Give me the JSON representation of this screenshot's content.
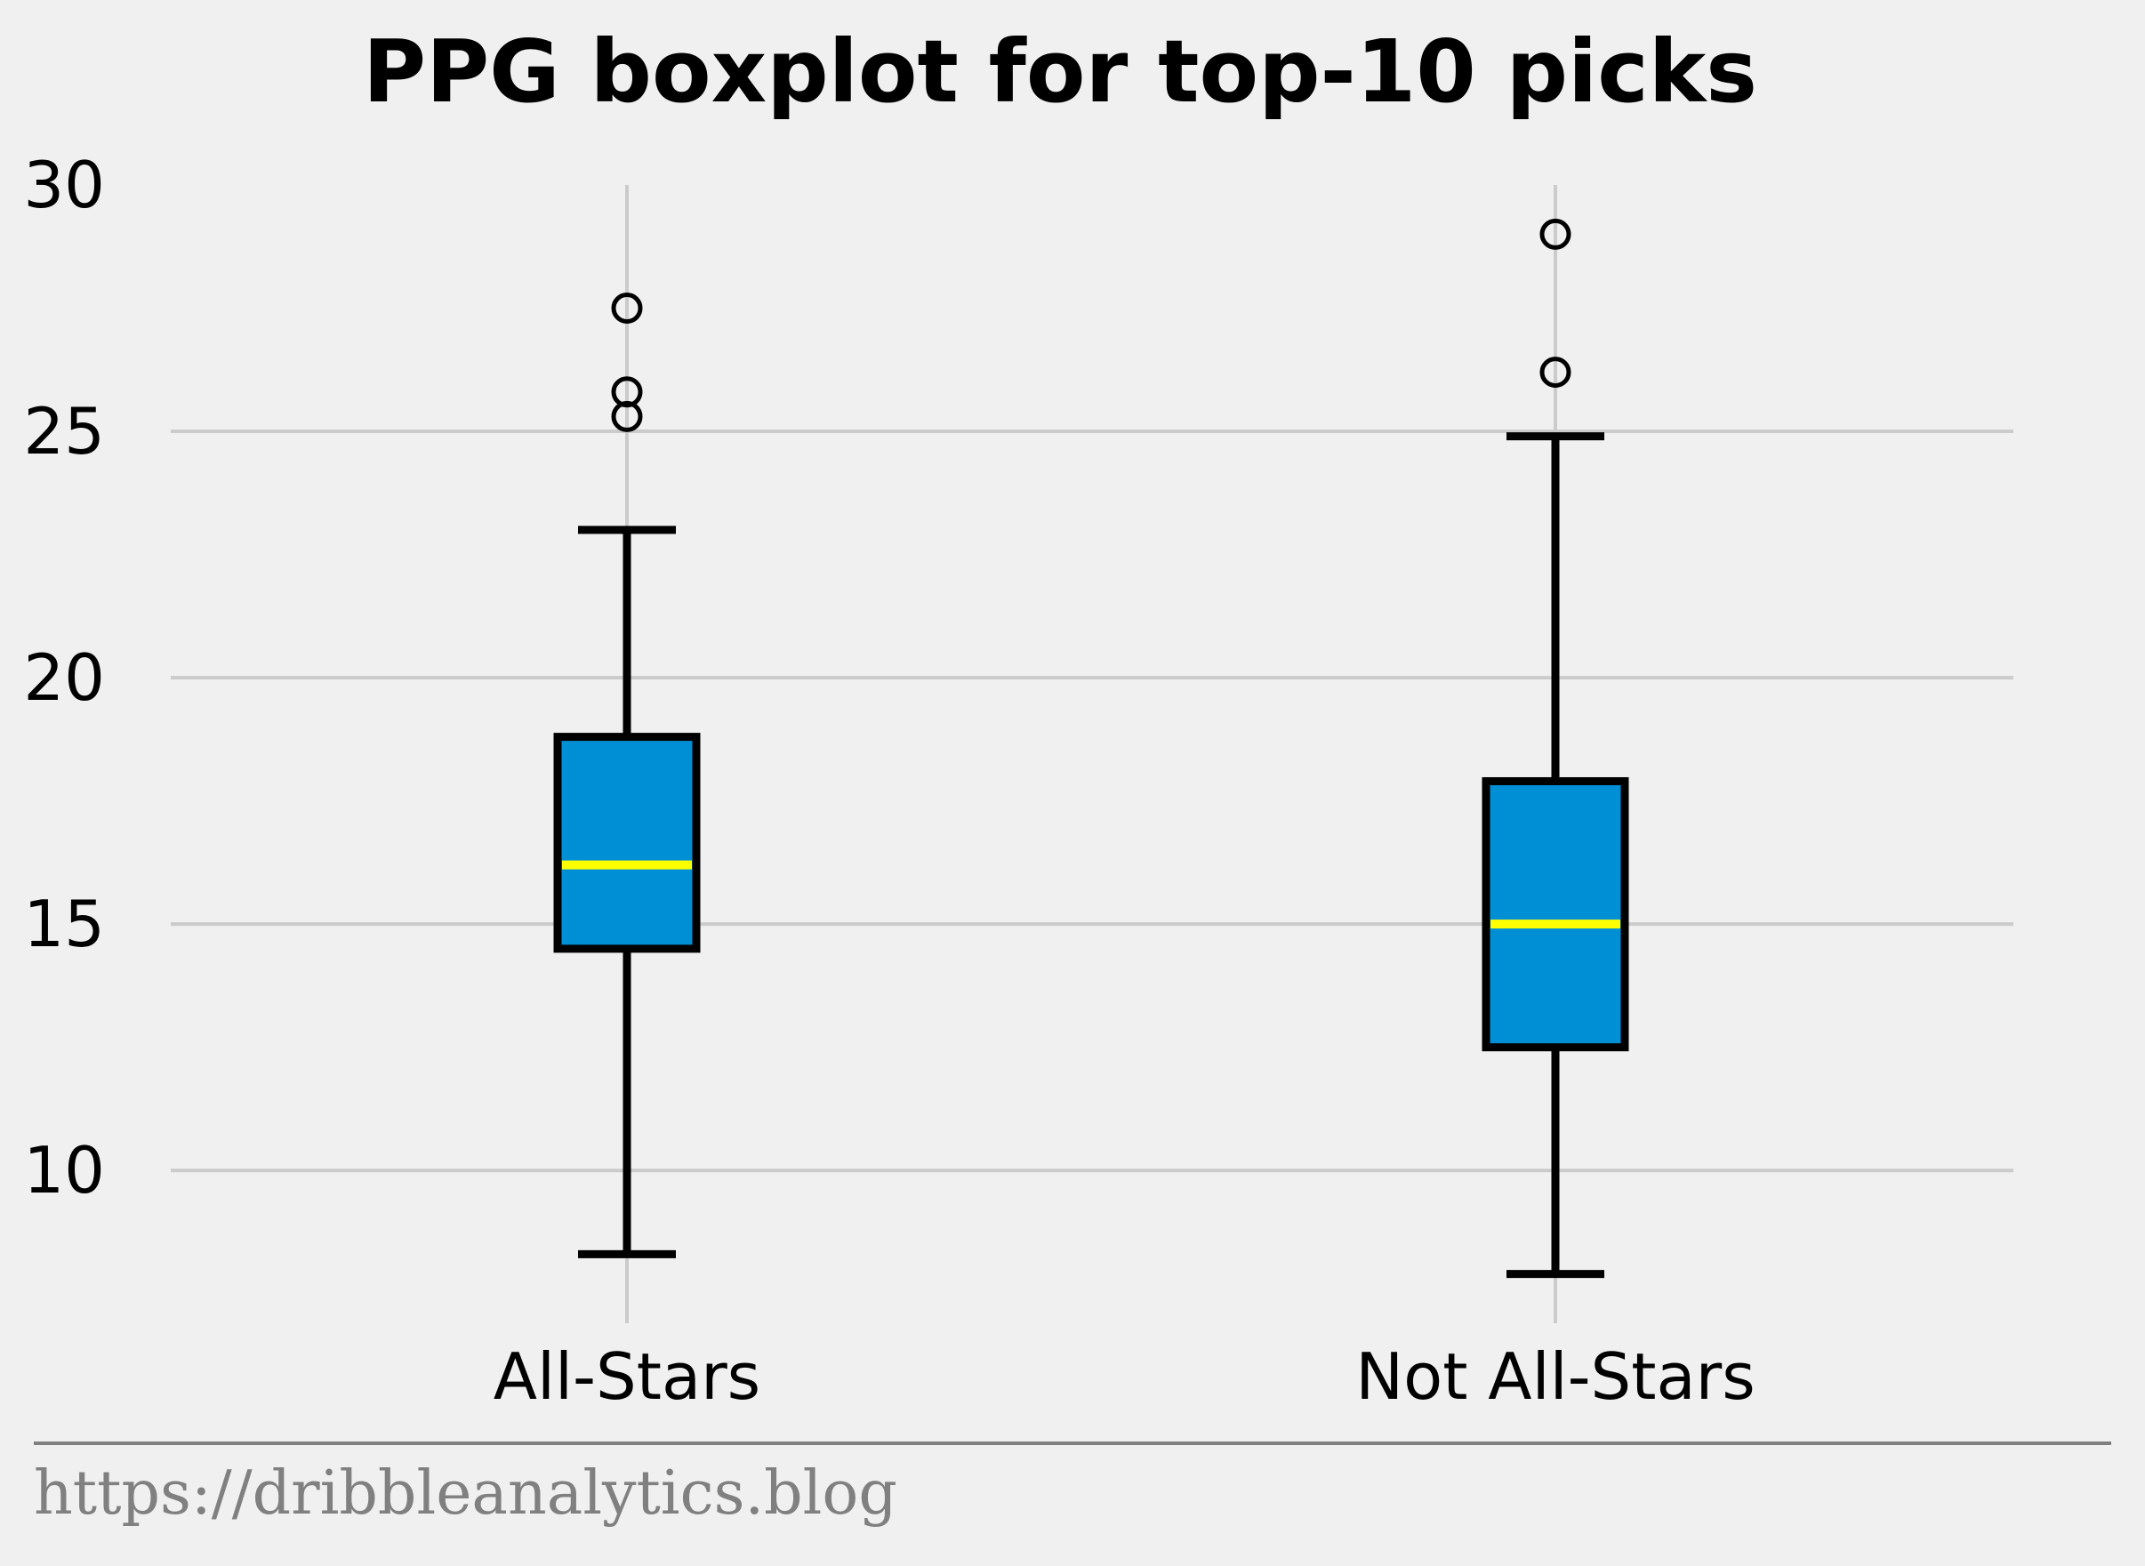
{
  "chart_data": {
    "type": "boxplot",
    "title": "PPG boxplot for top-10 picks",
    "xlabel": "",
    "ylabel": "",
    "ylim": [
      6.9,
      30
    ],
    "yticks": [
      10,
      15,
      20,
      25,
      30
    ],
    "grid": true,
    "categories": [
      "All-Stars",
      "Not All-Stars"
    ],
    "boxes": [
      {
        "category": "All-Stars",
        "whisker_low": 8.3,
        "q1": 14.5,
        "median": 16.2,
        "q3": 18.8,
        "whisker_high": 23.0,
        "outliers": [
          25.3,
          25.8,
          27.5
        ]
      },
      {
        "category": "Not All-Stars",
        "whisker_low": 7.9,
        "q1": 12.5,
        "median": 15.0,
        "q3": 17.9,
        "whisker_high": 24.9,
        "outliers": [
          26.2,
          29.0
        ]
      }
    ],
    "colors": {
      "background": "#f0f0f0",
      "box_fill": "#008fd5",
      "box_edge": "#000000",
      "median": "#ffff00",
      "grid": "#cbcbcb",
      "footer_rule": "#808080"
    }
  },
  "footer": {
    "source": "https://dribbleanalytics.blog"
  }
}
